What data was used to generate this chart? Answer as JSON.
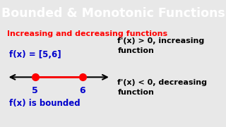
{
  "title": "Bounded & Monotonic Functions",
  "title_bg": "#1E6FE8",
  "title_color": "#FFFFFF",
  "subtitle": "Increasing and decreasing functions",
  "subtitle_color": "#FF0000",
  "fx_label": "f(x) = [5,6]",
  "fx_color": "#0000CC",
  "bounded_label": "f(x) is bounded",
  "bounded_color": "#0000CC",
  "right_text1": "f'(x) > 0, increasing\nfunction",
  "right_text2": "f'(x) < 0, decreasing\nfunction",
  "right_text_color": "#000000",
  "line_color": "#FF0000",
  "dot_color": "#FF0000",
  "arrow_color": "#000000",
  "num5_color": "#0000CC",
  "num6_color": "#0000CC",
  "bg_color": "#E8E8E8"
}
